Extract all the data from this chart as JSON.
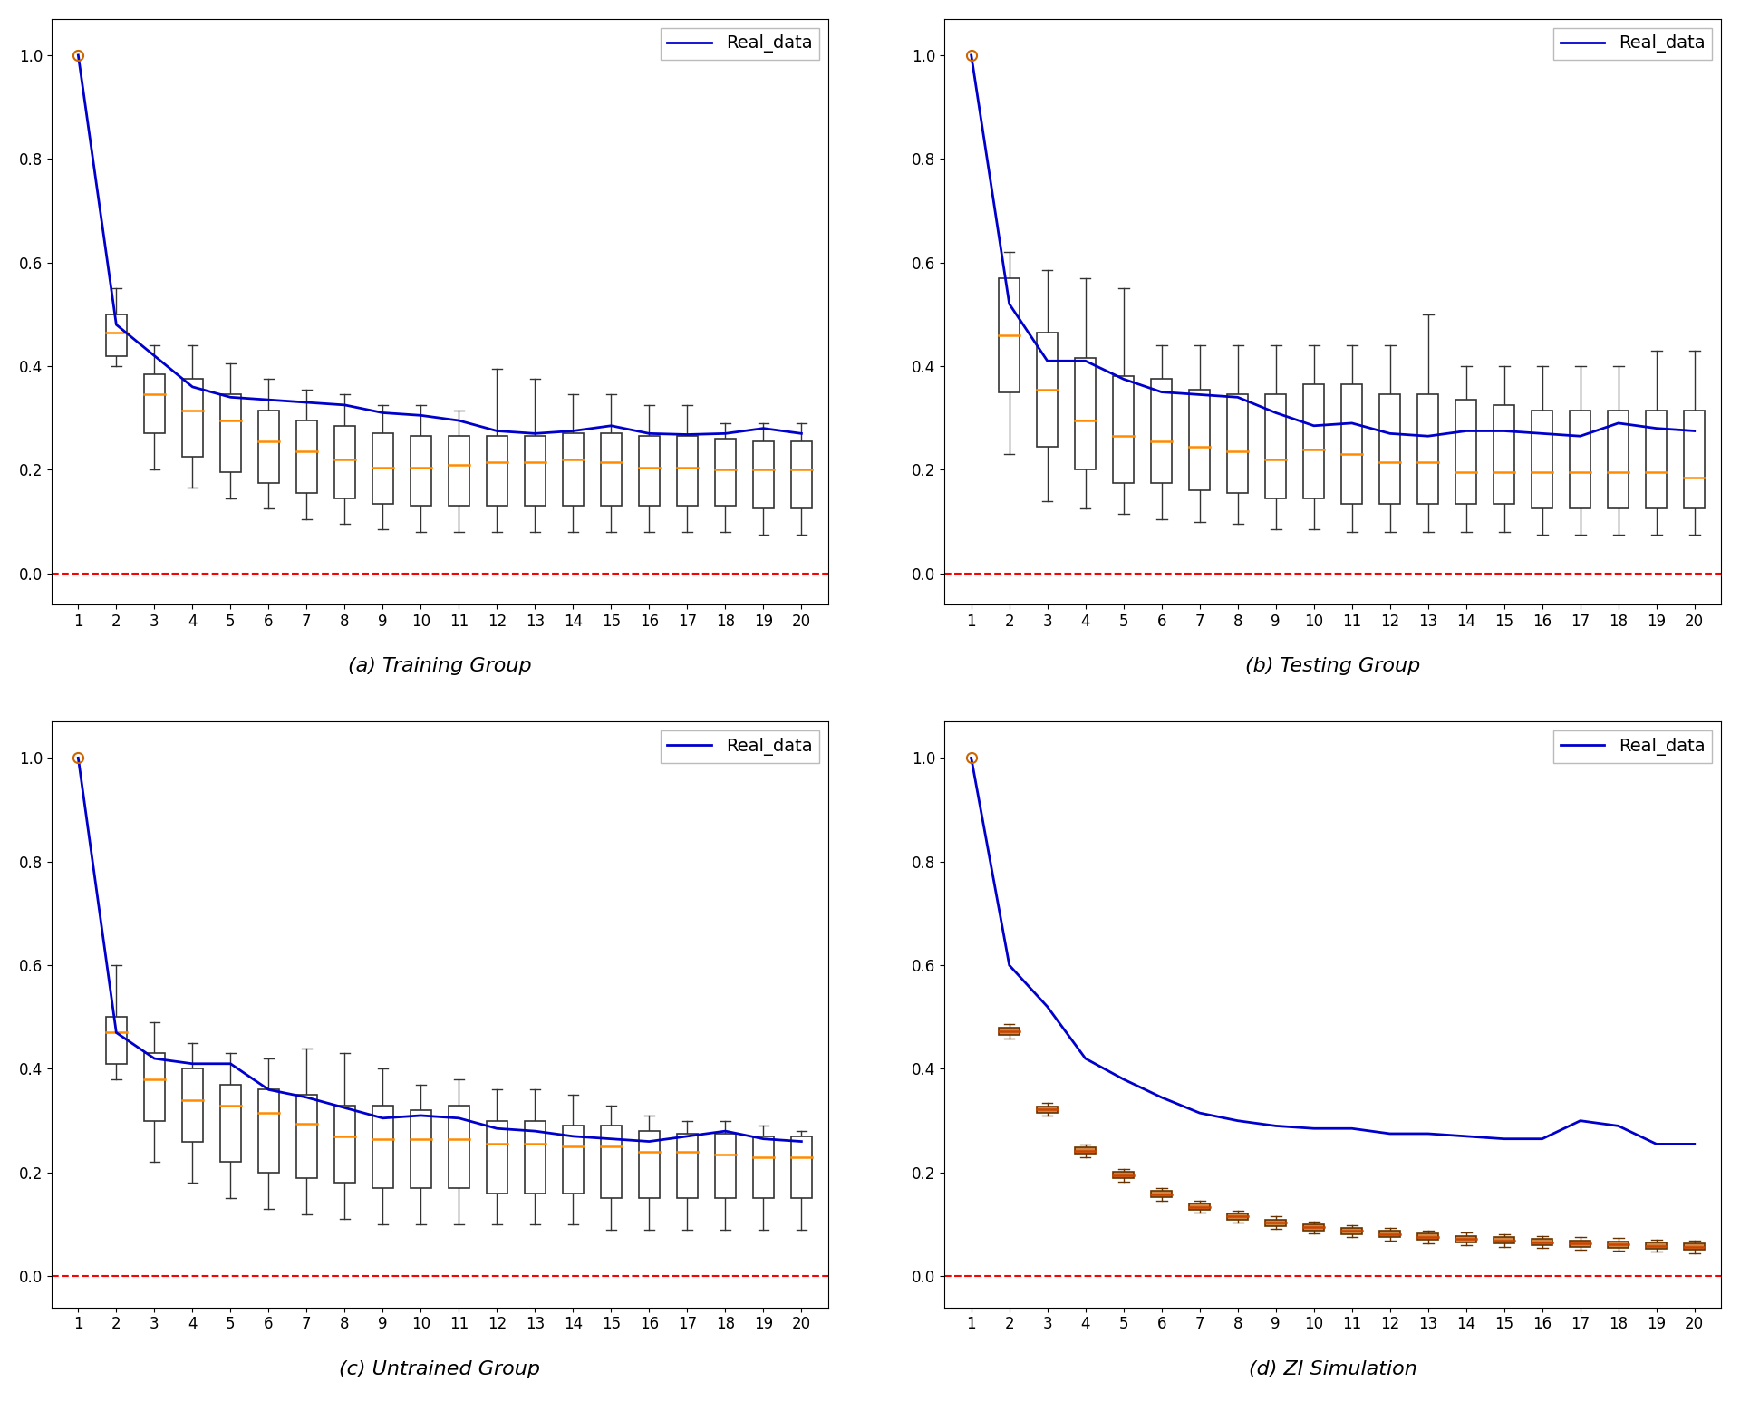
{
  "subplots": [
    {
      "title": "(a) Training Group",
      "real_data": [
        1.0,
        0.48,
        0.42,
        0.36,
        0.34,
        0.335,
        0.33,
        0.325,
        0.31,
        0.305,
        0.295,
        0.275,
        0.27,
        0.275,
        0.285,
        0.27,
        0.268,
        0.27,
        0.28,
        0.27
      ],
      "boxes": [
        null,
        {
          "q1": 0.42,
          "median": 0.465,
          "q3": 0.5,
          "whislo": 0.4,
          "whishi": 0.55
        },
        {
          "q1": 0.27,
          "median": 0.345,
          "q3": 0.385,
          "whislo": 0.2,
          "whishi": 0.44
        },
        {
          "q1": 0.225,
          "median": 0.315,
          "q3": 0.375,
          "whislo": 0.165,
          "whishi": 0.44
        },
        {
          "q1": 0.195,
          "median": 0.295,
          "q3": 0.345,
          "whislo": 0.145,
          "whishi": 0.405
        },
        {
          "q1": 0.175,
          "median": 0.255,
          "q3": 0.315,
          "whislo": 0.125,
          "whishi": 0.375
        },
        {
          "q1": 0.155,
          "median": 0.235,
          "q3": 0.295,
          "whislo": 0.105,
          "whishi": 0.355
        },
        {
          "q1": 0.145,
          "median": 0.22,
          "q3": 0.285,
          "whislo": 0.095,
          "whishi": 0.345
        },
        {
          "q1": 0.135,
          "median": 0.205,
          "q3": 0.27,
          "whislo": 0.085,
          "whishi": 0.325
        },
        {
          "q1": 0.13,
          "median": 0.205,
          "q3": 0.265,
          "whislo": 0.08,
          "whishi": 0.325
        },
        {
          "q1": 0.13,
          "median": 0.21,
          "q3": 0.265,
          "whislo": 0.08,
          "whishi": 0.315
        },
        {
          "q1": 0.13,
          "median": 0.215,
          "q3": 0.265,
          "whislo": 0.08,
          "whishi": 0.395
        },
        {
          "q1": 0.13,
          "median": 0.215,
          "q3": 0.265,
          "whislo": 0.08,
          "whishi": 0.375
        },
        {
          "q1": 0.13,
          "median": 0.22,
          "q3": 0.27,
          "whislo": 0.08,
          "whishi": 0.345
        },
        {
          "q1": 0.13,
          "median": 0.215,
          "q3": 0.27,
          "whislo": 0.08,
          "whishi": 0.345
        },
        {
          "q1": 0.13,
          "median": 0.205,
          "q3": 0.265,
          "whislo": 0.08,
          "whishi": 0.325
        },
        {
          "q1": 0.13,
          "median": 0.205,
          "q3": 0.265,
          "whislo": 0.08,
          "whishi": 0.325
        },
        {
          "q1": 0.13,
          "median": 0.2,
          "q3": 0.26,
          "whislo": 0.08,
          "whishi": 0.29
        },
        {
          "q1": 0.125,
          "median": 0.2,
          "q3": 0.255,
          "whislo": 0.075,
          "whishi": 0.29
        },
        {
          "q1": 0.125,
          "median": 0.2,
          "q3": 0.255,
          "whislo": 0.075,
          "whishi": 0.29
        }
      ]
    },
    {
      "title": "(b) Testing Group",
      "real_data": [
        1.0,
        0.52,
        0.41,
        0.41,
        0.375,
        0.35,
        0.345,
        0.34,
        0.31,
        0.285,
        0.29,
        0.27,
        0.265,
        0.275,
        0.275,
        0.27,
        0.265,
        0.29,
        0.28,
        0.275
      ],
      "boxes": [
        null,
        {
          "q1": 0.35,
          "median": 0.46,
          "q3": 0.57,
          "whislo": 0.23,
          "whishi": 0.62
        },
        {
          "q1": 0.245,
          "median": 0.355,
          "q3": 0.465,
          "whislo": 0.14,
          "whishi": 0.585
        },
        {
          "q1": 0.2,
          "median": 0.295,
          "q3": 0.415,
          "whislo": 0.125,
          "whishi": 0.57
        },
        {
          "q1": 0.175,
          "median": 0.265,
          "q3": 0.38,
          "whislo": 0.115,
          "whishi": 0.55
        },
        {
          "q1": 0.175,
          "median": 0.255,
          "q3": 0.375,
          "whislo": 0.105,
          "whishi": 0.44
        },
        {
          "q1": 0.16,
          "median": 0.245,
          "q3": 0.355,
          "whislo": 0.1,
          "whishi": 0.44
        },
        {
          "q1": 0.155,
          "median": 0.235,
          "q3": 0.345,
          "whislo": 0.095,
          "whishi": 0.44
        },
        {
          "q1": 0.145,
          "median": 0.22,
          "q3": 0.345,
          "whislo": 0.085,
          "whishi": 0.44
        },
        {
          "q1": 0.145,
          "median": 0.24,
          "q3": 0.365,
          "whislo": 0.085,
          "whishi": 0.44
        },
        {
          "q1": 0.135,
          "median": 0.23,
          "q3": 0.365,
          "whislo": 0.08,
          "whishi": 0.44
        },
        {
          "q1": 0.135,
          "median": 0.215,
          "q3": 0.345,
          "whislo": 0.08,
          "whishi": 0.44
        },
        {
          "q1": 0.135,
          "median": 0.215,
          "q3": 0.345,
          "whislo": 0.08,
          "whishi": 0.5
        },
        {
          "q1": 0.135,
          "median": 0.195,
          "q3": 0.335,
          "whislo": 0.08,
          "whishi": 0.4
        },
        {
          "q1": 0.135,
          "median": 0.195,
          "q3": 0.325,
          "whislo": 0.08,
          "whishi": 0.4
        },
        {
          "q1": 0.125,
          "median": 0.195,
          "q3": 0.315,
          "whislo": 0.075,
          "whishi": 0.4
        },
        {
          "q1": 0.125,
          "median": 0.195,
          "q3": 0.315,
          "whislo": 0.075,
          "whishi": 0.4
        },
        {
          "q1": 0.125,
          "median": 0.195,
          "q3": 0.315,
          "whislo": 0.075,
          "whishi": 0.4
        },
        {
          "q1": 0.125,
          "median": 0.195,
          "q3": 0.315,
          "whislo": 0.075,
          "whishi": 0.43
        },
        {
          "q1": 0.125,
          "median": 0.185,
          "q3": 0.315,
          "whislo": 0.075,
          "whishi": 0.43
        }
      ]
    },
    {
      "title": "(c) Untrained Group",
      "real_data": [
        1.0,
        0.47,
        0.42,
        0.41,
        0.41,
        0.36,
        0.345,
        0.325,
        0.305,
        0.31,
        0.305,
        0.285,
        0.28,
        0.27,
        0.265,
        0.26,
        0.27,
        0.28,
        0.265,
        0.26
      ],
      "boxes": [
        null,
        {
          "q1": 0.41,
          "median": 0.47,
          "q3": 0.5,
          "whislo": 0.38,
          "whishi": 0.6
        },
        {
          "q1": 0.3,
          "median": 0.38,
          "q3": 0.43,
          "whislo": 0.22,
          "whishi": 0.49
        },
        {
          "q1": 0.26,
          "median": 0.34,
          "q3": 0.4,
          "whislo": 0.18,
          "whishi": 0.45
        },
        {
          "q1": 0.22,
          "median": 0.33,
          "q3": 0.37,
          "whislo": 0.15,
          "whishi": 0.43
        },
        {
          "q1": 0.2,
          "median": 0.315,
          "q3": 0.36,
          "whislo": 0.13,
          "whishi": 0.42
        },
        {
          "q1": 0.19,
          "median": 0.295,
          "q3": 0.35,
          "whislo": 0.12,
          "whishi": 0.44
        },
        {
          "q1": 0.18,
          "median": 0.27,
          "q3": 0.33,
          "whislo": 0.11,
          "whishi": 0.43
        },
        {
          "q1": 0.17,
          "median": 0.265,
          "q3": 0.33,
          "whislo": 0.1,
          "whishi": 0.4
        },
        {
          "q1": 0.17,
          "median": 0.265,
          "q3": 0.32,
          "whislo": 0.1,
          "whishi": 0.37
        },
        {
          "q1": 0.17,
          "median": 0.265,
          "q3": 0.33,
          "whislo": 0.1,
          "whishi": 0.38
        },
        {
          "q1": 0.16,
          "median": 0.255,
          "q3": 0.3,
          "whislo": 0.1,
          "whishi": 0.36
        },
        {
          "q1": 0.16,
          "median": 0.255,
          "q3": 0.3,
          "whislo": 0.1,
          "whishi": 0.36
        },
        {
          "q1": 0.16,
          "median": 0.25,
          "q3": 0.29,
          "whislo": 0.1,
          "whishi": 0.35
        },
        {
          "q1": 0.15,
          "median": 0.25,
          "q3": 0.29,
          "whislo": 0.09,
          "whishi": 0.33
        },
        {
          "q1": 0.15,
          "median": 0.24,
          "q3": 0.28,
          "whislo": 0.09,
          "whishi": 0.31
        },
        {
          "q1": 0.15,
          "median": 0.24,
          "q3": 0.275,
          "whislo": 0.09,
          "whishi": 0.3
        },
        {
          "q1": 0.15,
          "median": 0.235,
          "q3": 0.275,
          "whislo": 0.09,
          "whishi": 0.3
        },
        {
          "q1": 0.15,
          "median": 0.23,
          "q3": 0.27,
          "whislo": 0.09,
          "whishi": 0.29
        },
        {
          "q1": 0.15,
          "median": 0.23,
          "q3": 0.27,
          "whislo": 0.09,
          "whishi": 0.28
        }
      ]
    },
    {
      "title": "(d) ZI Simulation",
      "real_data": [
        1.0,
        0.6,
        0.52,
        0.42,
        0.38,
        0.345,
        0.315,
        0.3,
        0.29,
        0.285,
        0.285,
        0.275,
        0.275,
        0.27,
        0.265,
        0.265,
        0.3,
        0.29,
        0.255,
        0.255
      ],
      "boxes_zi": true,
      "boxes": [
        null,
        {
          "q1": 0.465,
          "median": 0.472,
          "q3": 0.479,
          "whislo": 0.458,
          "whishi": 0.486
        },
        {
          "q1": 0.316,
          "median": 0.322,
          "q3": 0.328,
          "whislo": 0.31,
          "whishi": 0.334
        },
        {
          "q1": 0.236,
          "median": 0.242,
          "q3": 0.248,
          "whislo": 0.23,
          "whishi": 0.254
        },
        {
          "q1": 0.189,
          "median": 0.195,
          "q3": 0.201,
          "whislo": 0.183,
          "whishi": 0.207
        },
        {
          "q1": 0.152,
          "median": 0.158,
          "q3": 0.164,
          "whislo": 0.146,
          "whishi": 0.17
        },
        {
          "q1": 0.128,
          "median": 0.134,
          "q3": 0.14,
          "whislo": 0.122,
          "whishi": 0.146
        },
        {
          "q1": 0.109,
          "median": 0.115,
          "q3": 0.121,
          "whislo": 0.103,
          "whishi": 0.127
        },
        {
          "q1": 0.097,
          "median": 0.103,
          "q3": 0.109,
          "whislo": 0.091,
          "whishi": 0.115
        },
        {
          "q1": 0.088,
          "median": 0.094,
          "q3": 0.1,
          "whislo": 0.082,
          "whishi": 0.106
        },
        {
          "q1": 0.081,
          "median": 0.087,
          "q3": 0.093,
          "whislo": 0.075,
          "whishi": 0.099
        },
        {
          "q1": 0.075,
          "median": 0.081,
          "q3": 0.087,
          "whislo": 0.069,
          "whishi": 0.093
        },
        {
          "q1": 0.07,
          "median": 0.076,
          "q3": 0.082,
          "whislo": 0.064,
          "whishi": 0.088
        },
        {
          "q1": 0.066,
          "median": 0.072,
          "q3": 0.078,
          "whislo": 0.06,
          "whishi": 0.084
        },
        {
          "q1": 0.063,
          "median": 0.069,
          "q3": 0.075,
          "whislo": 0.057,
          "whishi": 0.081
        },
        {
          "q1": 0.06,
          "median": 0.066,
          "q3": 0.072,
          "whislo": 0.054,
          "whishi": 0.078
        },
        {
          "q1": 0.057,
          "median": 0.063,
          "q3": 0.069,
          "whislo": 0.051,
          "whishi": 0.075
        },
        {
          "q1": 0.055,
          "median": 0.061,
          "q3": 0.067,
          "whislo": 0.049,
          "whishi": 0.073
        },
        {
          "q1": 0.053,
          "median": 0.059,
          "q3": 0.065,
          "whislo": 0.047,
          "whishi": 0.071
        },
        {
          "q1": 0.051,
          "median": 0.057,
          "q3": 0.063,
          "whislo": 0.045,
          "whishi": 0.069
        }
      ]
    }
  ],
  "line_color": "#0000cc",
  "box_facecolor": "white",
  "box_edgecolor": "#333333",
  "zi_box_facecolor": "#cc8844",
  "zi_box_edgecolor": "#663300",
  "median_color": "#ff8c00",
  "zi_median_color": "#cc4400",
  "whisker_color": "#333333",
  "zi_whisker_color": "#663300",
  "dashed_line_color": "red",
  "marker_facecolor": "none",
  "marker_edgecolor": "#cc6600",
  "legend_label": "Real_data",
  "ylim": [
    -0.06,
    1.07
  ],
  "yticks": [
    0.0,
    0.2,
    0.4,
    0.6,
    0.8,
    1.0
  ],
  "xtick_labels": [
    "1",
    "2",
    "3",
    "4",
    "5",
    "6",
    "7",
    "8",
    "9",
    "10",
    "11",
    "12",
    "13",
    "14",
    "15",
    "16",
    "17",
    "18",
    "19",
    "20"
  ],
  "background_color": "white",
  "subtitle_fontsize": 16,
  "tick_fontsize": 12,
  "box_width": 0.55
}
